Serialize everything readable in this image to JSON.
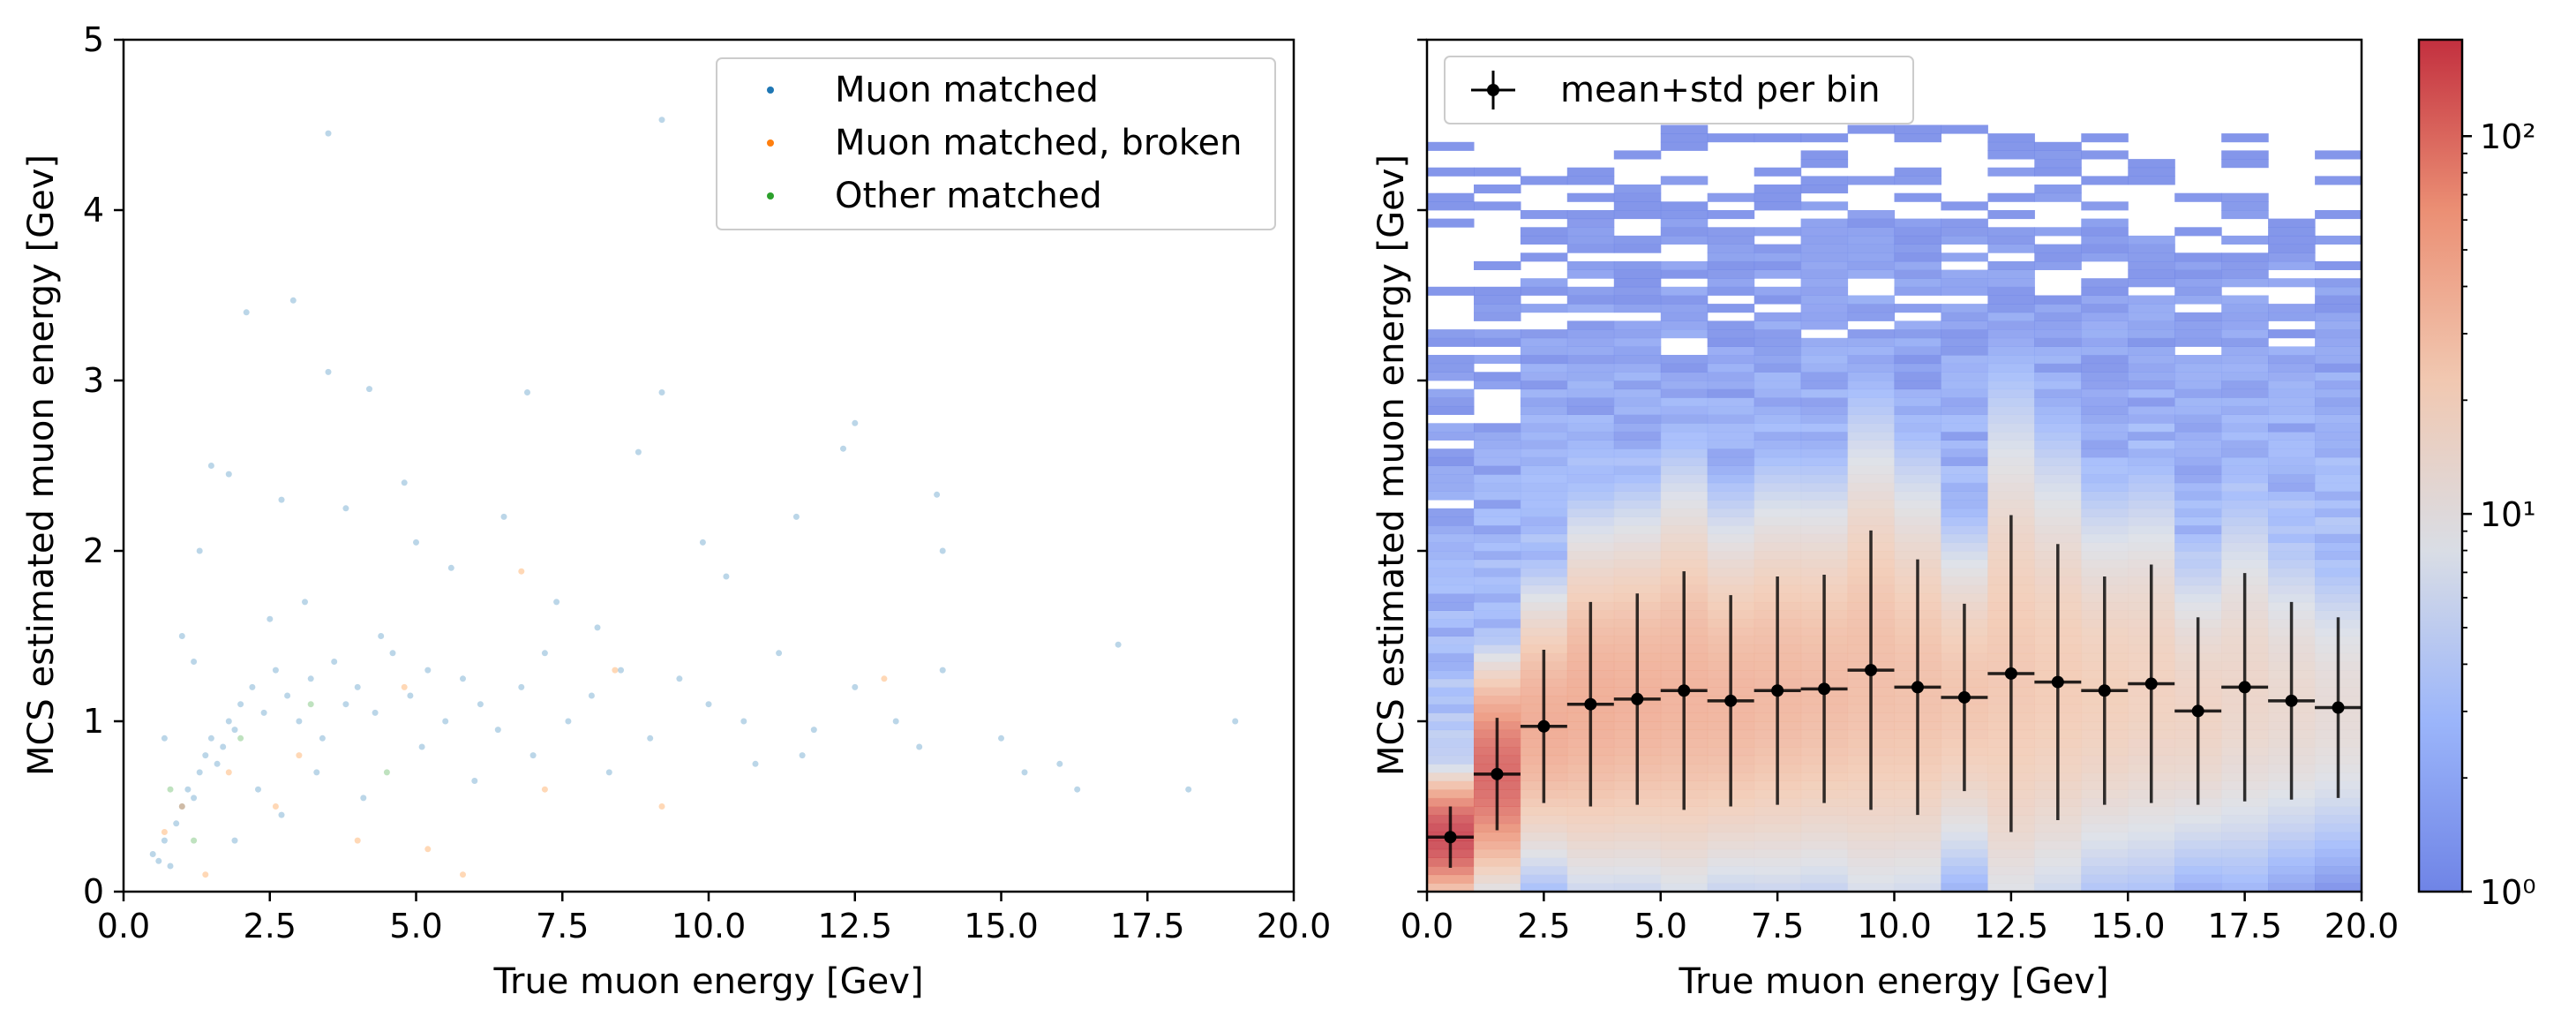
{
  "colors": {
    "muon_matched": "#1f77b4",
    "muon_matched_broken": "#ff7f0e",
    "other_matched": "#2ca02c",
    "errorbar": "#000000",
    "colormap": "coolwarm"
  },
  "chart_data": [
    {
      "type": "scatter",
      "xlabel": "True muon energy [Gev]",
      "ylabel": "MCS estimated muon energy [Gev]",
      "xlim": [
        0,
        20
      ],
      "ylim": [
        0,
        5
      ],
      "x_ticks": [
        "0.0",
        "2.5",
        "5.0",
        "7.5",
        "10.0",
        "12.5",
        "15.0",
        "17.5",
        "20.0"
      ],
      "y_ticks": [
        "0",
        "1",
        "2",
        "3",
        "4",
        "5"
      ],
      "legend": {
        "position": "upper right",
        "entries": [
          "Muon matched",
          "Muon matched, broken",
          "Other matched"
        ]
      },
      "series": [
        {
          "name": "Muon matched",
          "points": [
            [
              0.5,
              0.22
            ],
            [
              0.6,
              0.18
            ],
            [
              0.7,
              0.3
            ],
            [
              0.8,
              0.15
            ],
            [
              0.9,
              0.4
            ],
            [
              1.0,
              0.5
            ],
            [
              1.1,
              0.6
            ],
            [
              1.2,
              0.55
            ],
            [
              1.3,
              0.7
            ],
            [
              1.4,
              0.8
            ],
            [
              1.5,
              0.9
            ],
            [
              1.6,
              0.75
            ],
            [
              1.7,
              0.85
            ],
            [
              1.8,
              1.0
            ],
            [
              1.9,
              0.95
            ],
            [
              2.0,
              1.1
            ],
            [
              2.2,
              1.2
            ],
            [
              2.4,
              1.05
            ],
            [
              2.6,
              1.3
            ],
            [
              2.8,
              1.15
            ],
            [
              3.0,
              1.0
            ],
            [
              3.2,
              1.25
            ],
            [
              3.4,
              0.9
            ],
            [
              3.6,
              1.35
            ],
            [
              3.8,
              1.1
            ],
            [
              4.0,
              1.2
            ],
            [
              4.3,
              1.05
            ],
            [
              4.6,
              1.4
            ],
            [
              4.9,
              1.15
            ],
            [
              5.2,
              1.3
            ],
            [
              5.5,
              1.0
            ],
            [
              5.8,
              1.25
            ],
            [
              6.1,
              1.1
            ],
            [
              6.4,
              0.95
            ],
            [
              6.8,
              1.2
            ],
            [
              7.2,
              1.4
            ],
            [
              7.6,
              1.0
            ],
            [
              8.0,
              1.15
            ],
            [
              8.5,
              1.3
            ],
            [
              9.0,
              0.9
            ],
            [
              9.5,
              1.25
            ],
            [
              10.0,
              1.1
            ],
            [
              10.6,
              1.0
            ],
            [
              11.2,
              1.4
            ],
            [
              11.8,
              0.95
            ],
            [
              12.5,
              1.2
            ],
            [
              13.2,
              1.0
            ],
            [
              14.0,
              1.3
            ],
            [
              15.0,
              0.9
            ],
            [
              16.3,
              0.6
            ],
            [
              17.0,
              1.45
            ],
            [
              18.2,
              0.6
            ],
            [
              19.0,
              1.0
            ],
            [
              1.3,
              2.0
            ],
            [
              1.5,
              2.5
            ],
            [
              2.1,
              3.4
            ],
            [
              2.9,
              3.47
            ],
            [
              3.5,
              4.45
            ],
            [
              9.2,
              4.53
            ],
            [
              3.5,
              3.05
            ],
            [
              4.2,
              2.95
            ],
            [
              6.9,
              2.93
            ],
            [
              9.2,
              2.93
            ],
            [
              12.5,
              2.75
            ],
            [
              12.3,
              2.6
            ],
            [
              8.8,
              2.58
            ],
            [
              13.9,
              2.33
            ],
            [
              1.0,
              1.5
            ],
            [
              1.2,
              1.35
            ],
            [
              0.7,
              0.9
            ],
            [
              2.3,
              0.6
            ],
            [
              2.7,
              0.45
            ],
            [
              1.9,
              0.3
            ],
            [
              3.3,
              0.7
            ],
            [
              4.1,
              0.55
            ],
            [
              5.1,
              0.85
            ],
            [
              6.0,
              0.65
            ],
            [
              7.0,
              0.8
            ],
            [
              8.3,
              0.7
            ],
            [
              10.8,
              0.75
            ],
            [
              11.6,
              0.8
            ],
            [
              13.6,
              0.85
            ],
            [
              15.4,
              0.7
            ],
            [
              16.0,
              0.75
            ],
            [
              2.5,
              1.6
            ],
            [
              3.1,
              1.7
            ],
            [
              4.4,
              1.5
            ],
            [
              5.6,
              1.9
            ],
            [
              7.4,
              1.7
            ],
            [
              10.3,
              1.85
            ],
            [
              11.5,
              2.2
            ],
            [
              9.9,
              2.05
            ],
            [
              14.0,
              2.0
            ],
            [
              8.1,
              1.55
            ],
            [
              5.0,
              2.05
            ],
            [
              6.5,
              2.2
            ],
            [
              4.8,
              2.4
            ],
            [
              3.8,
              2.25
            ],
            [
              2.7,
              2.3
            ],
            [
              1.8,
              2.45
            ]
          ]
        },
        {
          "name": "Muon matched, broken",
          "points": [
            [
              0.7,
              0.35
            ],
            [
              1.0,
              0.5
            ],
            [
              1.4,
              0.1
            ],
            [
              2.6,
              0.5
            ],
            [
              4.0,
              0.3
            ],
            [
              5.2,
              0.25
            ],
            [
              5.8,
              0.1
            ],
            [
              6.8,
              1.88
            ],
            [
              7.2,
              0.6
            ],
            [
              8.4,
              1.3
            ],
            [
              9.2,
              0.5
            ],
            [
              13.0,
              1.25
            ],
            [
              3.0,
              0.8
            ],
            [
              1.8,
              0.7
            ],
            [
              4.8,
              1.2
            ]
          ]
        },
        {
          "name": "Other matched",
          "points": [
            [
              0.8,
              0.6
            ],
            [
              1.2,
              0.3
            ],
            [
              2.0,
              0.9
            ],
            [
              3.2,
              1.1
            ],
            [
              4.5,
              0.7
            ]
          ]
        }
      ]
    },
    {
      "type": "heatmap",
      "xlabel": "True muon energy [Gev]",
      "ylabel": "MCS estimated muon energy [Gev]",
      "xlim": [
        0,
        20
      ],
      "ylim": [
        0,
        5
      ],
      "x_ticks": [
        "0.0",
        "2.5",
        "5.0",
        "7.5",
        "10.0",
        "12.5",
        "15.0",
        "17.5",
        "20.0"
      ],
      "y_ticks": [],
      "bins": {
        "x": [
          0,
          20,
          20
        ],
        "y": [
          0,
          5,
          100
        ]
      },
      "color_scale": {
        "type": "log",
        "range": [
          1,
          180
        ],
        "tick_labels": [
          "10⁰",
          "10¹",
          "10²"
        ],
        "tick_values": [
          1,
          10,
          100
        ]
      },
      "legend": {
        "position": "upper left",
        "entries": [
          "mean+std per bin"
        ]
      },
      "errorbar_series": {
        "name": "mean+std per bin",
        "x": [
          0.5,
          1.5,
          2.5,
          3.5,
          4.5,
          5.5,
          6.5,
          7.5,
          8.5,
          9.5,
          10.5,
          11.5,
          12.5,
          13.5,
          14.5,
          15.5,
          16.5,
          17.5,
          18.5,
          19.5
        ],
        "y": [
          0.32,
          0.69,
          0.97,
          1.1,
          1.13,
          1.18,
          1.12,
          1.18,
          1.19,
          1.3,
          1.2,
          1.14,
          1.28,
          1.23,
          1.18,
          1.22,
          1.06,
          1.2,
          1.12,
          1.08
        ],
        "yerr": [
          0.18,
          0.33,
          0.45,
          0.6,
          0.62,
          0.7,
          0.62,
          0.67,
          0.67,
          0.82,
          0.75,
          0.55,
          0.93,
          0.81,
          0.67,
          0.7,
          0.55,
          0.67,
          0.58,
          0.53
        ],
        "xerr": 0.5
      }
    }
  ]
}
